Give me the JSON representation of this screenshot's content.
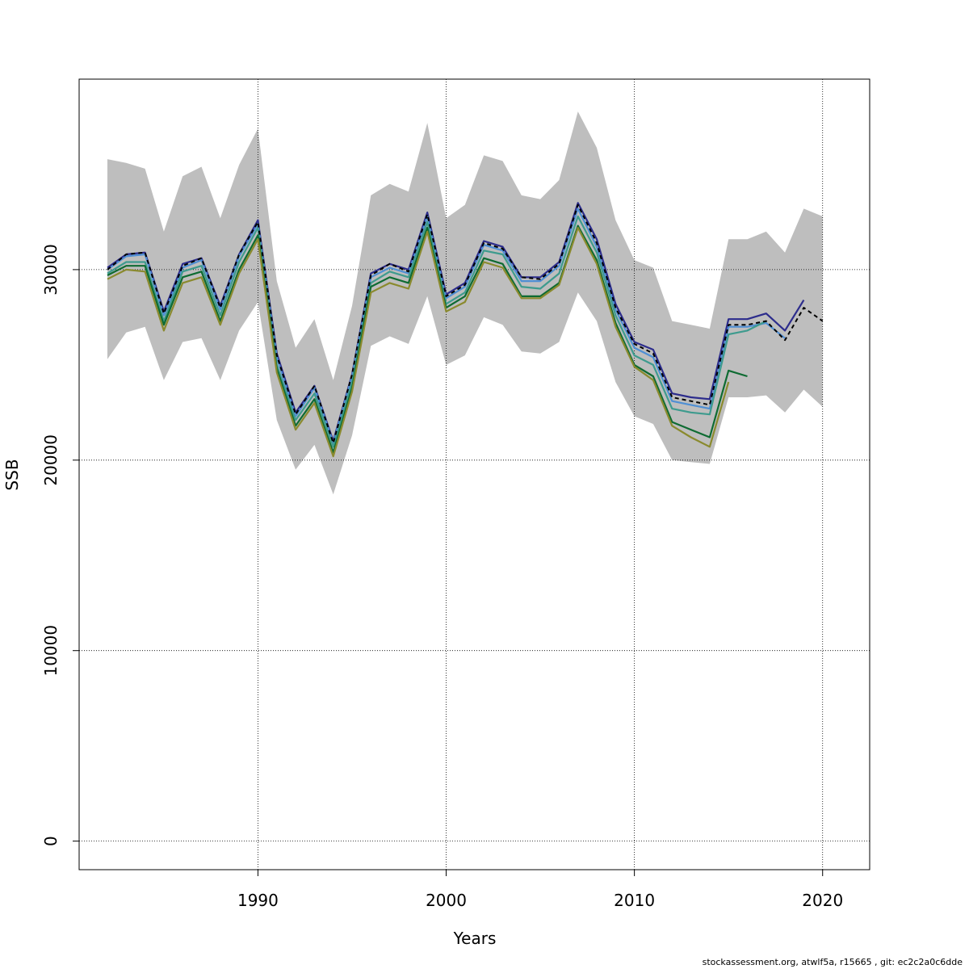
{
  "chart_data": {
    "type": "line",
    "title": "",
    "xlabel": "Years",
    "ylabel": "SSB",
    "xlim": [
      1980.5,
      2022.5
    ],
    "ylim": [
      -1500,
      40000
    ],
    "x_ticks": [
      1990,
      2000,
      2010,
      2020
    ],
    "y_ticks": [
      0,
      10000,
      20000,
      30000
    ],
    "x_tick_labels": [
      "1990",
      "2000",
      "2010",
      "2020"
    ],
    "y_tick_labels": [
      "0",
      "10000",
      "20000",
      "30000"
    ],
    "grid": true,
    "confidence_band": {
      "x": [
        1982,
        1983,
        1984,
        1985,
        1986,
        1987,
        1988,
        1989,
        1990,
        1991,
        1992,
        1993,
        1994,
        1995,
        1996,
        1997,
        1998,
        1999,
        2000,
        2001,
        2002,
        2003,
        2004,
        2005,
        2006,
        2007,
        2008,
        2009,
        2010,
        2011,
        2012,
        2013,
        2014,
        2015,
        2016,
        2017,
        2018,
        2019,
        2020
      ],
      "upper": [
        35800,
        35600,
        35300,
        32000,
        34900,
        35400,
        32700,
        35500,
        37400,
        29400,
        25900,
        27400,
        24200,
        28100,
        33900,
        34500,
        34100,
        37700,
        32700,
        33400,
        36000,
        35700,
        33900,
        33700,
        34700,
        38300,
        36400,
        32600,
        30500,
        30100,
        27300,
        27100,
        26900,
        31600,
        31600,
        32000,
        30900,
        33200,
        32800
      ],
      "lower": [
        25300,
        26700,
        27000,
        24200,
        26200,
        26400,
        24200,
        26800,
        28300,
        22100,
        19500,
        20800,
        18200,
        21300,
        26000,
        26500,
        26100,
        28600,
        25000,
        25500,
        27500,
        27100,
        25700,
        25600,
        26200,
        28800,
        27300,
        24100,
        22300,
        21900,
        20000,
        19900,
        19800,
        23300,
        23300,
        23400,
        22500,
        23700,
        22800
      ]
    },
    "series": [
      {
        "color": "#000000",
        "dash": true,
        "x": [
          1982,
          1983,
          1984,
          1985,
          1986,
          1987,
          1988,
          1989,
          1990,
          1991,
          1992,
          1993,
          1994,
          1995,
          1996,
          1997,
          1998,
          1999,
          2000,
          2001,
          2002,
          2003,
          2004,
          2005,
          2006,
          2007,
          2008,
          2009,
          2010,
          2011,
          2012,
          2013,
          2014,
          2015,
          2016,
          2017,
          2018,
          2019,
          2020
        ],
        "values": [
          30000,
          30800,
          30900,
          27700,
          30200,
          30600,
          28000,
          30800,
          32500,
          25500,
          22400,
          23900,
          20900,
          24500,
          29700,
          30300,
          29900,
          32900,
          28600,
          29200,
          31400,
          31100,
          29600,
          29500,
          30300,
          33400,
          31400,
          28000,
          26100,
          25600,
          23300,
          23100,
          22900,
          27100,
          27100,
          27300,
          26300,
          28000,
          27300
        ]
      },
      {
        "color": "#2c2c8c",
        "x": [
          1982,
          1983,
          1984,
          1985,
          1986,
          1987,
          1988,
          1989,
          1990,
          1991,
          1992,
          1993,
          1994,
          1995,
          1996,
          1997,
          1998,
          1999,
          2000,
          2001,
          2002,
          2003,
          2004,
          2005,
          2006,
          2007,
          2008,
          2009,
          2010,
          2011,
          2012,
          2013,
          2014,
          2015,
          2016,
          2017,
          2018,
          2019
        ],
        "values": [
          30100,
          30800,
          30900,
          27800,
          30300,
          30600,
          28100,
          30800,
          32600,
          25600,
          22500,
          23900,
          21000,
          24500,
          29800,
          30300,
          30000,
          33000,
          28700,
          29300,
          31500,
          31200,
          29600,
          29600,
          30400,
          33500,
          31600,
          28200,
          26200,
          25800,
          23500,
          23300,
          23200,
          27400,
          27400,
          27700,
          26800,
          28400
        ]
      },
      {
        "color": "#4f8fd4",
        "x": [
          1982,
          1983,
          1984,
          1985,
          1986,
          1987,
          1988,
          1989,
          1990,
          1991,
          1992,
          1993,
          1994,
          1995,
          1996,
          1997,
          1998,
          1999,
          2000,
          2001,
          2002,
          2003,
          2004,
          2005,
          2006,
          2007,
          2008,
          2009,
          2010,
          2011,
          2012,
          2013,
          2014,
          2015,
          2016,
          2017,
          2018
        ],
        "values": [
          30000,
          30700,
          30800,
          27600,
          30100,
          30500,
          27900,
          30700,
          32400,
          25400,
          22300,
          23800,
          20900,
          24400,
          29600,
          30100,
          29800,
          32800,
          28500,
          29100,
          31300,
          31000,
          29400,
          29400,
          30200,
          33200,
          31200,
          27900,
          25900,
          25400,
          23100,
          22900,
          22700,
          27000,
          27000,
          27200,
          26400
        ]
      },
      {
        "color": "#3e9b8e",
        "x": [
          1982,
          1983,
          1984,
          1985,
          1986,
          1987,
          1988,
          1989,
          1990,
          1991,
          1992,
          1993,
          1994,
          1995,
          1996,
          1997,
          1998,
          1999,
          2000,
          2001,
          2002,
          2003,
          2004,
          2005,
          2006,
          2007,
          2008,
          2009,
          2010,
          2011,
          2012,
          2013,
          2014,
          2015,
          2016,
          2017
        ],
        "values": [
          29800,
          30400,
          30400,
          27300,
          29900,
          30200,
          27600,
          30400,
          32200,
          25000,
          22100,
          23500,
          20700,
          24100,
          29300,
          29900,
          29600,
          32500,
          28200,
          28800,
          31000,
          30800,
          29100,
          29000,
          29800,
          32800,
          30900,
          27600,
          25500,
          25000,
          22700,
          22500,
          22400,
          26600,
          26800,
          27300
        ]
      },
      {
        "color": "#0e6b32",
        "x": [
          1982,
          1983,
          1984,
          1985,
          1986,
          1987,
          1988,
          1989,
          1990,
          1991,
          1992,
          1993,
          1994,
          1995,
          1996,
          1997,
          1998,
          1999,
          2000,
          2001,
          2002,
          2003,
          2004,
          2005,
          2006,
          2007,
          2008,
          2009,
          2010,
          2011,
          2012,
          2013,
          2014,
          2015,
          2016
        ],
        "values": [
          29700,
          30200,
          30200,
          27100,
          29600,
          29900,
          27300,
          30000,
          31800,
          24800,
          21800,
          23200,
          20400,
          23800,
          29100,
          29600,
          29300,
          32200,
          28000,
          28600,
          30600,
          30300,
          28600,
          28600,
          29300,
          32300,
          30500,
          27200,
          25000,
          24400,
          22000,
          21600,
          21200,
          24700,
          24400
        ]
      },
      {
        "color": "#8a8a2e",
        "x": [
          1982,
          1983,
          1984,
          1985,
          1986,
          1987,
          1988,
          1989,
          1990,
          1991,
          1992,
          1993,
          1994,
          1995,
          1996,
          1997,
          1998,
          1999,
          2000,
          2001,
          2002,
          2003,
          2004,
          2005,
          2006,
          2007,
          2008,
          2009,
          2010,
          2011,
          2012,
          2013,
          2014,
          2015
        ],
        "values": [
          29500,
          30000,
          29900,
          26800,
          29300,
          29600,
          27100,
          29800,
          31600,
          24600,
          21600,
          23000,
          20200,
          23600,
          28800,
          29300,
          29000,
          32000,
          27800,
          28300,
          30400,
          30100,
          28500,
          28500,
          29200,
          32200,
          30300,
          27000,
          24900,
          24200,
          21800,
          21200,
          20700,
          24100
        ]
      }
    ]
  },
  "footer": "stockassessment.org, atwlf5a, r15665 , git: ec2c2a0c6dde"
}
